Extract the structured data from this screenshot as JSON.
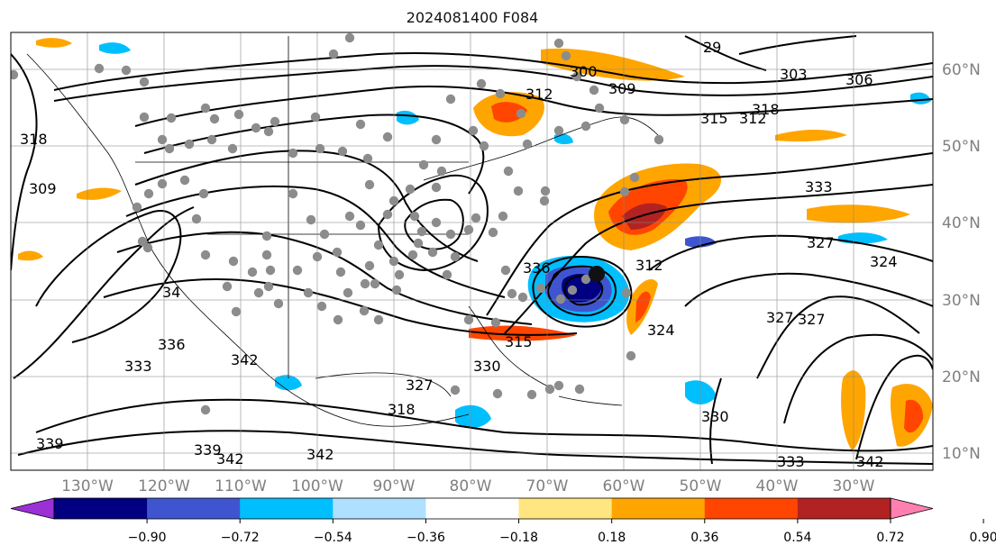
{
  "title": "2024081400 F084",
  "lon_labels": [
    "130°W",
    "120°W",
    "110°W",
    "100°W",
    "90°W",
    "80°W",
    "70°W",
    "60°W",
    "50°W",
    "40°W",
    "30°W"
  ],
  "lat_labels": [
    "60°N",
    "50°N",
    "40°N",
    "30°N",
    "20°N",
    "10°N"
  ],
  "contour_labels": [
    "29",
    "300",
    "303",
    "306",
    "309",
    "312",
    "312",
    "315",
    "318",
    "318",
    "309",
    "333",
    "327",
    "324",
    "324",
    "327",
    "327",
    "330",
    "333",
    "339",
    "342",
    "339",
    "342",
    "342",
    "34",
    "336",
    "333",
    "342",
    "327",
    "330",
    "315",
    "336",
    "312",
    "318"
  ],
  "colorbar": {
    "ticks": [
      "−0.90",
      "−0.72",
      "−0.54",
      "−0.36",
      "−0.18",
      "0.18",
      "0.36",
      "0.54",
      "0.72",
      "0.90"
    ],
    "colors": [
      "#9b30d6",
      "#000080",
      "#3f55cf",
      "#00bfff",
      "#b0e0ff",
      "#ffffff",
      "#ffe680",
      "#ffa500",
      "#ff4500",
      "#b22222",
      "#ff80b0"
    ]
  },
  "colors": {
    "gridline": "#888888",
    "tick_label": "#808080",
    "cyclone_core": "#111111",
    "station_dot": "#8c8c8c"
  }
}
